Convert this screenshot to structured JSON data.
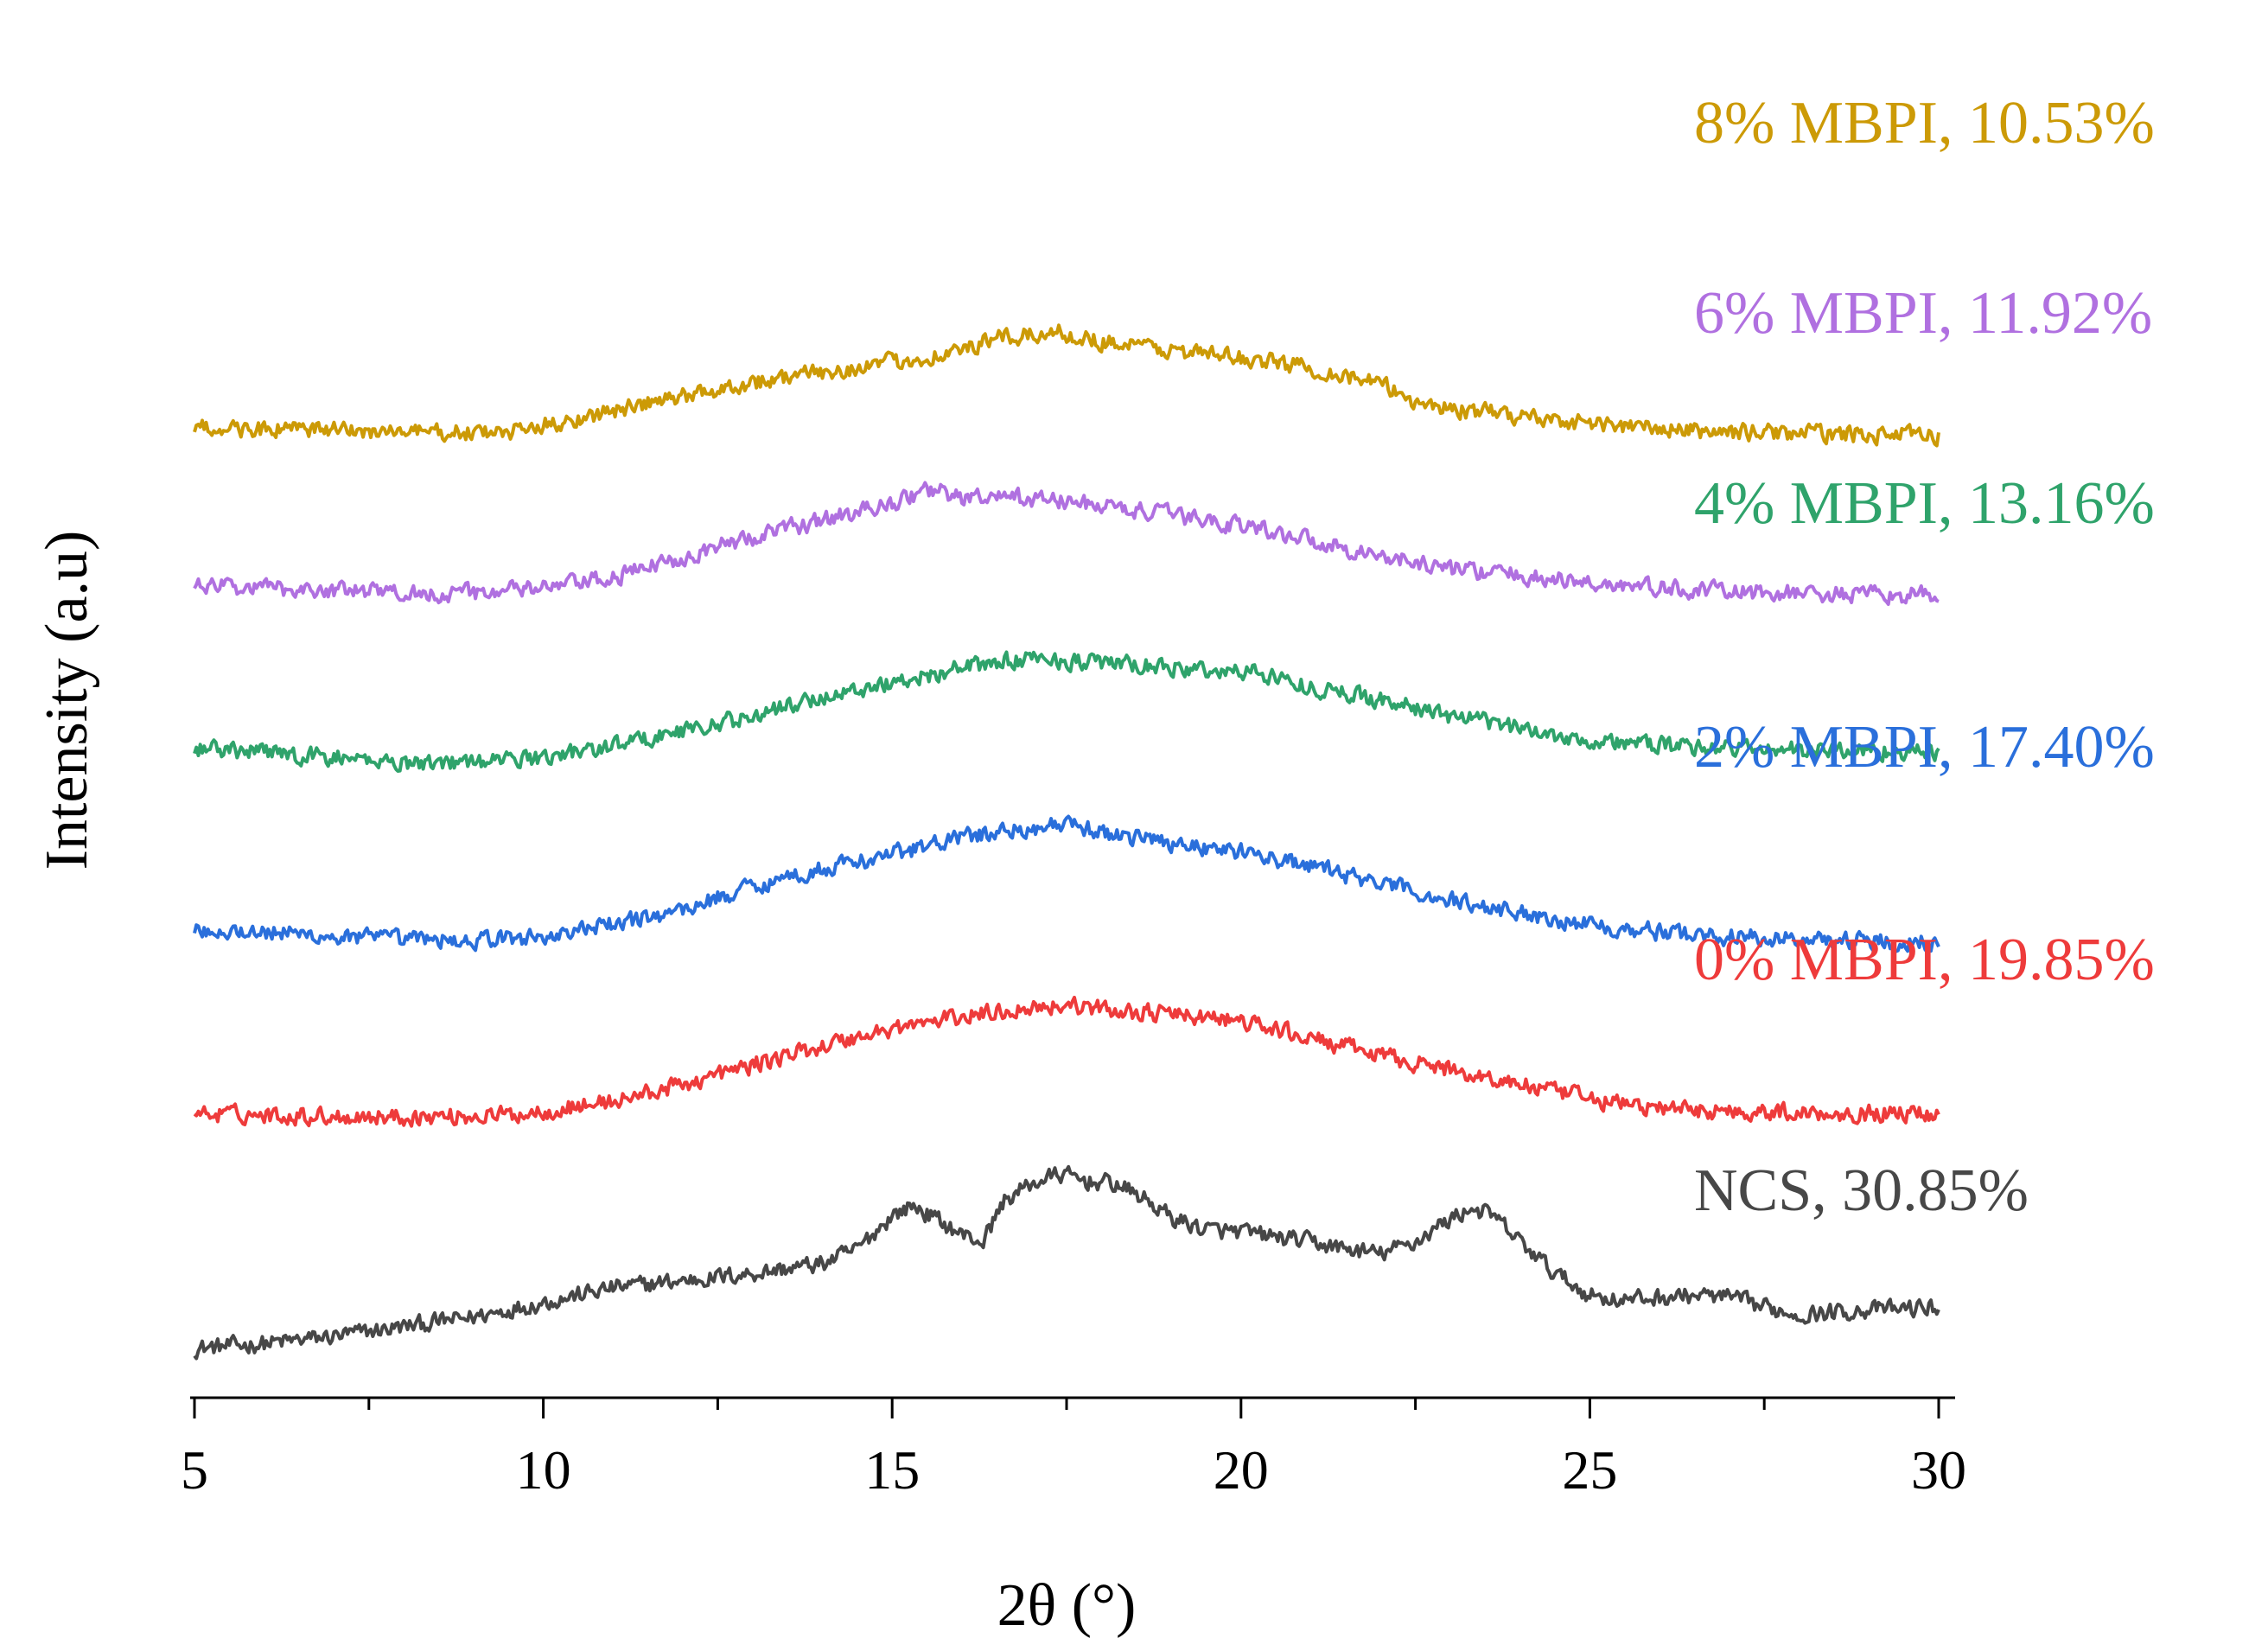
{
  "chart_data": {
    "type": "line",
    "title": "",
    "xlabel": "2θ (°)",
    "ylabel": "Intensity (a.u)",
    "xlim": [
      5,
      30
    ],
    "xticks": [
      5,
      10,
      15,
      20,
      25,
      30
    ],
    "tick_labels": [
      "5",
      "10",
      "15",
      "20",
      "25",
      "30"
    ],
    "ylim": [
      0,
      24
    ],
    "y_axis_visible": false,
    "grid": false,
    "legend": "series labels placed at right end of each trace",
    "series": [
      {
        "name": "NCS, 30.85%",
        "color": "#474747",
        "x": [
          5,
          6,
          7,
          8,
          9,
          10,
          10.5,
          11,
          12,
          13,
          14,
          14.5,
          15,
          15.3,
          15.6,
          16,
          16.3,
          16.6,
          17,
          17.4,
          17.8,
          18.2,
          18.6,
          19,
          19.5,
          20,
          20.5,
          21,
          21.5,
          22,
          22.5,
          22.8,
          23.1,
          23.3,
          23.6,
          24,
          24.5,
          25,
          25.5,
          26,
          26.5,
          27,
          27.5,
          28,
          28.5,
          29,
          29.5,
          30
        ],
        "values": [
          0.0,
          0.1,
          0.25,
          0.45,
          0.65,
          0.95,
          1.1,
          1.25,
          1.4,
          1.55,
          1.75,
          2.05,
          2.75,
          2.95,
          2.7,
          2.35,
          2.2,
          3.05,
          3.4,
          3.6,
          3.45,
          3.4,
          3.1,
          2.7,
          2.45,
          2.4,
          2.3,
          2.2,
          2.05,
          1.95,
          2.2,
          2.5,
          2.75,
          2.9,
          2.75,
          2.2,
          1.55,
          1.1,
          1.0,
          1.05,
          1.1,
          1.05,
          0.85,
          0.7,
          0.75,
          0.8,
          0.82,
          0.85
        ]
      },
      {
        "name": "0% MBPI, 19.85%",
        "color": "#ee3b3b",
        "x": [
          5,
          6,
          7,
          8,
          9,
          9.5,
          10,
          11,
          12,
          13,
          14,
          15,
          16,
          17,
          17.5,
          18,
          19,
          20,
          21,
          22,
          23,
          24,
          25,
          26,
          27,
          28,
          29,
          30
        ],
        "values": [
          4.85,
          4.82,
          4.8,
          4.78,
          4.8,
          4.82,
          4.9,
          5.1,
          5.45,
          5.85,
          6.25,
          6.6,
          6.85,
          7.05,
          7.1,
          7.0,
          6.9,
          6.75,
          6.4,
          6.05,
          5.75,
          5.45,
          5.15,
          4.95,
          4.9,
          4.87,
          4.86,
          4.85
        ]
      },
      {
        "name": "2% MBPI, 17.40%",
        "color": "#2a6fdb",
        "x": [
          5,
          6,
          7,
          8,
          9,
          10,
          11,
          12,
          13,
          14,
          15,
          16,
          17,
          17.5,
          18,
          19,
          20,
          21,
          22,
          23,
          24,
          25,
          26,
          27,
          28,
          29,
          30
        ],
        "values": [
          8.65,
          8.6,
          8.5,
          8.45,
          8.42,
          8.5,
          8.75,
          9.05,
          9.55,
          9.9,
          10.2,
          10.55,
          10.75,
          10.8,
          10.65,
          10.45,
          10.25,
          9.95,
          9.6,
          9.25,
          9.0,
          8.75,
          8.6,
          8.5,
          8.45,
          8.42,
          8.4
        ]
      },
      {
        "name": "4% MBPI, 13.16%",
        "color": "#2fa36b",
        "x": [
          5,
          6,
          7,
          8,
          9,
          10,
          11,
          12,
          13,
          14,
          15,
          16,
          17,
          18,
          19,
          20,
          20.2,
          21,
          22,
          23,
          24,
          25,
          26,
          27,
          28,
          29,
          30
        ],
        "values": [
          12.4,
          12.3,
          12.2,
          12.1,
          12.1,
          12.2,
          12.45,
          12.75,
          13.05,
          13.45,
          13.75,
          14.05,
          14.25,
          14.15,
          14.05,
          13.95,
          14.0,
          13.65,
          13.4,
          13.05,
          12.8,
          12.55,
          12.45,
          12.4,
          12.35,
          12.35,
          12.3
        ]
      },
      {
        "name": "6% MBPI, 11.92%",
        "color": "#b070e0",
        "x": [
          5,
          6,
          7,
          8,
          9,
          10,
          11,
          12,
          13,
          14,
          15,
          15.6,
          16,
          17,
          18,
          19,
          20,
          21,
          22,
          23,
          24,
          25,
          26,
          27,
          28,
          29,
          30
        ],
        "values": [
          15.75,
          15.7,
          15.65,
          15.6,
          15.6,
          15.7,
          15.9,
          16.35,
          16.75,
          17.1,
          17.45,
          17.75,
          17.55,
          17.55,
          17.4,
          17.2,
          17.0,
          16.7,
          16.35,
          16.1,
          15.95,
          15.8,
          15.7,
          15.62,
          15.58,
          15.55,
          15.55
        ]
      },
      {
        "name": "8% MBPI, 10.53%",
        "color": "#cc9a06",
        "x": [
          5,
          6,
          7,
          8,
          9,
          9.5,
          10,
          11,
          12,
          13,
          14,
          15,
          16,
          16.5,
          17,
          17.3,
          18,
          19,
          20,
          21,
          22,
          22.5,
          23,
          24,
          25,
          26,
          27,
          28,
          29,
          30
        ],
        "values": [
          19.0,
          18.97,
          18.95,
          18.92,
          18.9,
          18.9,
          19.05,
          19.35,
          19.65,
          19.95,
          20.15,
          20.35,
          20.6,
          20.85,
          20.9,
          21.0,
          20.8,
          20.6,
          20.45,
          20.25,
          19.9,
          19.55,
          19.4,
          19.25,
          19.1,
          18.98,
          18.92,
          18.9,
          18.87,
          18.85
        ]
      }
    ]
  }
}
